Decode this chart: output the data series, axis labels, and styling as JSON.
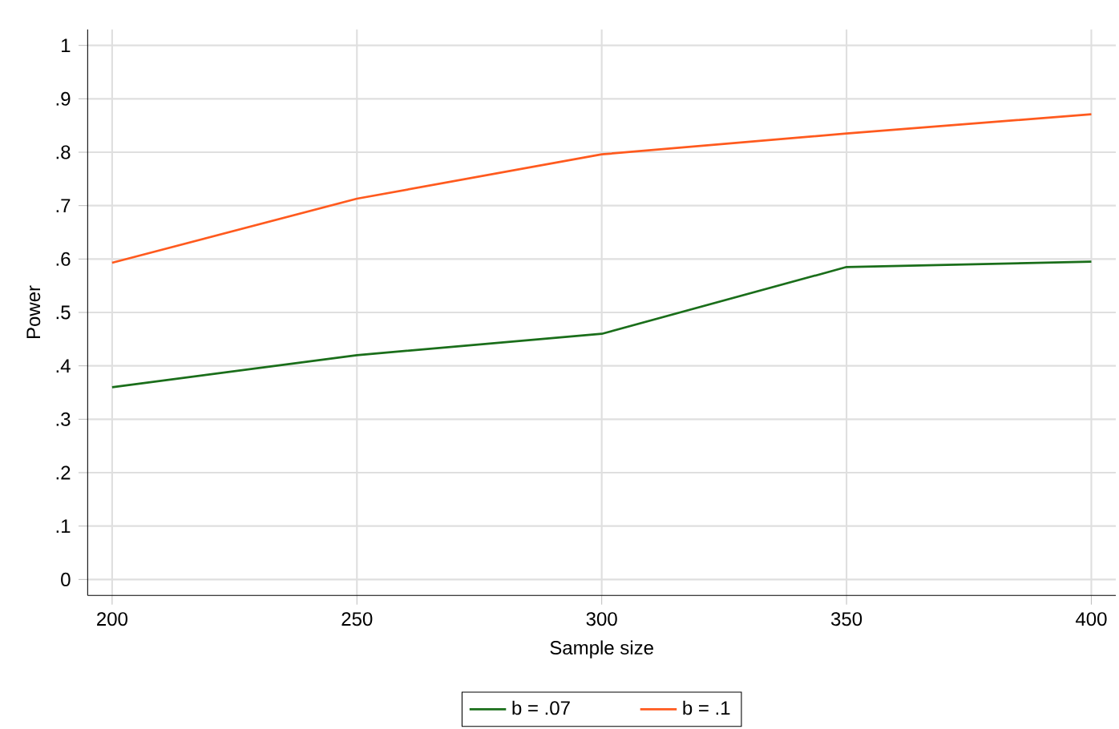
{
  "chart_data": {
    "type": "line",
    "xlabel": "Sample size",
    "ylabel": "Power",
    "xlim": [
      195,
      405
    ],
    "xticks": [
      200,
      250,
      300,
      350,
      400
    ],
    "ylim": [
      -0.03,
      1.03
    ],
    "yticks": [
      0,
      {
        "value": 0.1,
        "label": ".1"
      },
      {
        "value": 0.2,
        "label": ".2"
      },
      {
        "value": 0.3,
        "label": ".3"
      },
      {
        "value": 0.4,
        "label": ".4"
      },
      {
        "value": 0.5,
        "label": ".5"
      },
      {
        "value": 0.6,
        "label": ".6"
      },
      {
        "value": 0.7,
        "label": ".7"
      },
      {
        "value": 0.8,
        "label": ".8"
      },
      {
        "value": 0.9,
        "label": ".9"
      },
      1
    ],
    "x": [
      200,
      250,
      300,
      350,
      400
    ],
    "series": [
      {
        "name": "b = .07",
        "color": "#1a6e1a",
        "values": [
          0.36,
          0.42,
          0.46,
          0.585,
          0.595
        ]
      },
      {
        "name": "b = .1",
        "color": "#ff5a1e",
        "values": [
          0.593,
          0.713,
          0.796,
          0.835,
          0.871
        ]
      }
    ],
    "grid": true,
    "legend": "bottom",
    "marker": "none",
    "line_style": "solid"
  }
}
